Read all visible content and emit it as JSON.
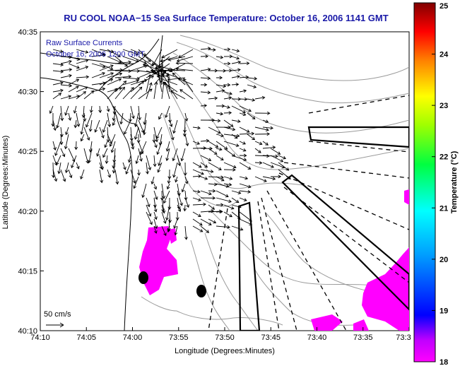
{
  "title": "RU COOL  NOAA−15  Sea Surface Temperature:  October 16, 2006 1141 GMT",
  "legend": {
    "line1": "Raw Surface Currents",
    "line2": "October 16, 2006 1200 GMT"
  },
  "axes": {
    "xlabel": "Longitude (Degrees:Minutes)",
    "ylabel": "Latitude (Degrees:Minutes)",
    "x_ticks": [
      "74:10",
      "74:05",
      "74:00",
      "73:55",
      "73:50",
      "73:45",
      "73:40",
      "73:35",
      "73:3"
    ],
    "y_ticks": [
      "40:35",
      "40:30",
      "40:25",
      "40:20",
      "40:15",
      "40:10"
    ]
  },
  "scale_label": "50 cm/s",
  "colorbar": {
    "label": "Temperature (°C)",
    "ticks": [
      "25",
      "24",
      "23",
      "22",
      "21",
      "20",
      "19",
      "18"
    ],
    "min": 18,
    "max": 25
  },
  "colors": {
    "title": "#1a1aa8",
    "warm_patch": "#ff00ff",
    "land_outline": "#000000",
    "bathymetry": "#9a9a9a"
  }
}
